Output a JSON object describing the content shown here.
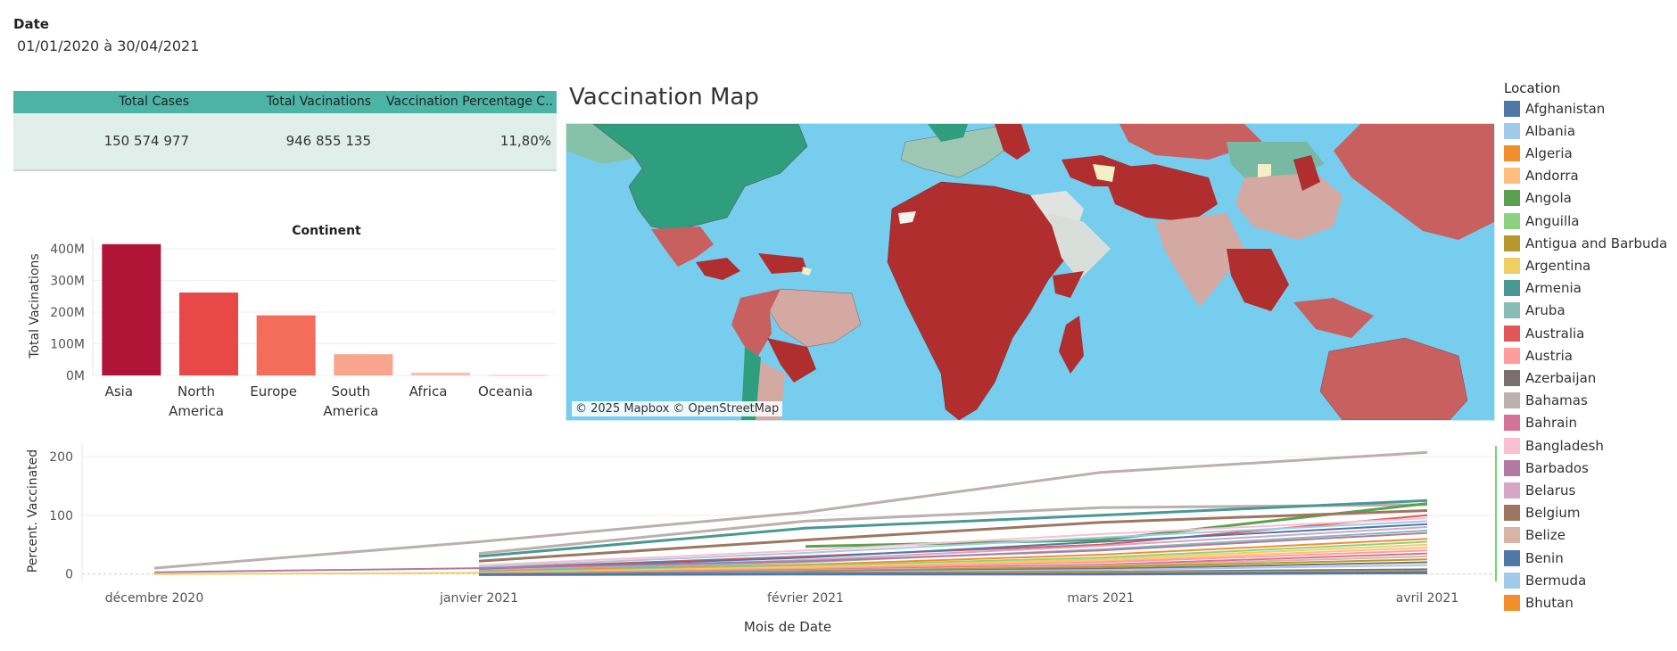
{
  "filter": {
    "label": "Date",
    "value": "01/01/2020 à 30/04/2021"
  },
  "kpi": {
    "headers": [
      "Total Cases",
      "Total Vacinations",
      "Vaccination Percentage C.."
    ],
    "values": [
      "150 574 977",
      "946 855 135",
      "11,80%"
    ]
  },
  "map": {
    "title": "Vaccination Map",
    "attribution": "© 2025 Mapbox © OpenStreetMap"
  },
  "legend": {
    "title": "Location",
    "items": [
      {
        "name": "Afghanistan",
        "color": "#4e79a7"
      },
      {
        "name": "Albania",
        "color": "#a0cbe8"
      },
      {
        "name": "Algeria",
        "color": "#f28e2b"
      },
      {
        "name": "Andorra",
        "color": "#ffbe7d"
      },
      {
        "name": "Angola",
        "color": "#59a14f"
      },
      {
        "name": "Anguilla",
        "color": "#8cd17d"
      },
      {
        "name": "Antigua and Barbuda",
        "color": "#b6992d"
      },
      {
        "name": "Argentina",
        "color": "#f1ce63"
      },
      {
        "name": "Armenia",
        "color": "#499894"
      },
      {
        "name": "Aruba",
        "color": "#86bcb6"
      },
      {
        "name": "Australia",
        "color": "#e15759"
      },
      {
        "name": "Austria",
        "color": "#ff9d9a"
      },
      {
        "name": "Azerbaijan",
        "color": "#79706e"
      },
      {
        "name": "Bahamas",
        "color": "#bab0ac"
      },
      {
        "name": "Bahrain",
        "color": "#d37295"
      },
      {
        "name": "Bangladesh",
        "color": "#fabfd2"
      },
      {
        "name": "Barbados",
        "color": "#b07aa1"
      },
      {
        "name": "Belarus",
        "color": "#d4a6c8"
      },
      {
        "name": "Belgium",
        "color": "#9d7660"
      },
      {
        "name": "Belize",
        "color": "#d7b5a6"
      },
      {
        "name": "Benin",
        "color": "#4e79a7"
      },
      {
        "name": "Bermuda",
        "color": "#a0cbe8"
      },
      {
        "name": "Bhutan",
        "color": "#f28e2b"
      }
    ]
  },
  "chart_data": [
    {
      "type": "bar",
      "title": "Continent",
      "ylabel": "Total Vacinations",
      "categories": [
        "Asia",
        "North America",
        "Europe",
        "South America",
        "Africa",
        "Oceania"
      ],
      "category_lines": [
        [
          "Asia"
        ],
        [
          "North",
          "America"
        ],
        [
          "Europe"
        ],
        [
          "South",
          "America"
        ],
        [
          "Africa"
        ],
        [
          "Oceania"
        ]
      ],
      "values": [
        415,
        262,
        190,
        67,
        9,
        2
      ],
      "unit": "M",
      "colors": [
        "#b01437",
        "#e84848",
        "#f36d5a",
        "#f9a48c",
        "#fbbfae",
        "#fcd2c4"
      ],
      "yticks": [
        "0M",
        "100M",
        "200M",
        "300M",
        "400M"
      ],
      "ytick_values": [
        0,
        100,
        200,
        300,
        400
      ],
      "ylim": [
        0,
        420
      ]
    },
    {
      "type": "line",
      "ylabel": "Percent. Vaccinated",
      "xlabel": "Mois de Date",
      "x": [
        "décembre 2020",
        "janvier 2021",
        "février 2021",
        "mars 2021",
        "avril 2021"
      ],
      "yticks": [
        0,
        100,
        200
      ],
      "ylim": [
        -5,
        215
      ],
      "series": [
        {
          "color": "#bab0ac",
          "values": [
            10,
            55,
            105,
            173,
            207
          ],
          "width": 3
        },
        {
          "color": "#bab0ac",
          "values": [
            null,
            35,
            90,
            113,
            118
          ],
          "width": 3
        },
        {
          "color": "#499894",
          "values": [
            null,
            30,
            78,
            100,
            125
          ],
          "width": 3
        },
        {
          "color": "#59a14f",
          "values": [
            null,
            null,
            47,
            58,
            120
          ],
          "width": 3
        },
        {
          "color": "#9d7660",
          "values": [
            null,
            22,
            58,
            88,
            108
          ],
          "width": 3
        },
        {
          "color": "#e15759",
          "values": [
            null,
            10,
            30,
            50,
            100
          ],
          "width": 2
        },
        {
          "color": "#fabfd2",
          "values": [
            null,
            15,
            40,
            68,
            95
          ],
          "width": 2
        },
        {
          "color": "#a0cbe8",
          "values": [
            null,
            12,
            36,
            62,
            90
          ],
          "width": 2
        },
        {
          "color": "#4e79a7",
          "values": [
            null,
            8,
            28,
            55,
            85
          ],
          "width": 2
        },
        {
          "color": "#d4a6c8",
          "values": [
            null,
            6,
            24,
            48,
            80
          ],
          "width": 2
        },
        {
          "color": "#86bcb6",
          "values": [
            null,
            5,
            20,
            42,
            74
          ],
          "width": 2
        },
        {
          "color": "#b07aa1",
          "values": [
            3,
            10,
            22,
            40,
            70
          ],
          "width": 2
        },
        {
          "color": "#f28e2b",
          "values": [
            null,
            4,
            16,
            33,
            60
          ],
          "width": 2
        },
        {
          "color": "#8cd17d",
          "values": [
            null,
            3,
            14,
            28,
            55
          ],
          "width": 2
        },
        {
          "color": "#f1ce63",
          "values": [
            0,
            2,
            12,
            25,
            50
          ],
          "width": 2
        },
        {
          "color": "#ffbe7d",
          "values": [
            null,
            2,
            10,
            22,
            45
          ],
          "width": 2
        },
        {
          "color": "#ff9d9a",
          "values": [
            null,
            1,
            9,
            20,
            40
          ],
          "width": 2
        },
        {
          "color": "#d37295",
          "values": [
            null,
            1,
            7,
            16,
            35
          ],
          "width": 2
        },
        {
          "color": "#d7b5a6",
          "values": [
            null,
            1,
            6,
            14,
            30
          ],
          "width": 2
        },
        {
          "color": "#b6992d",
          "values": [
            null,
            0,
            5,
            12,
            25
          ],
          "width": 2
        },
        {
          "color": "#79706e",
          "values": [
            null,
            0,
            4,
            9,
            20
          ],
          "width": 2
        },
        {
          "color": "#a0cbe8",
          "values": [
            null,
            0,
            3,
            7,
            15
          ],
          "width": 2
        },
        {
          "color": "#4e79a7",
          "values": [
            null,
            0,
            2,
            4,
            8
          ],
          "width": 2
        },
        {
          "color": "#f28e2b",
          "values": [
            null,
            0,
            1,
            3,
            5
          ],
          "width": 2
        },
        {
          "color": "#4e79a7",
          "values": [
            null,
            -1,
            0,
            0,
            2
          ],
          "width": 3
        }
      ]
    }
  ]
}
